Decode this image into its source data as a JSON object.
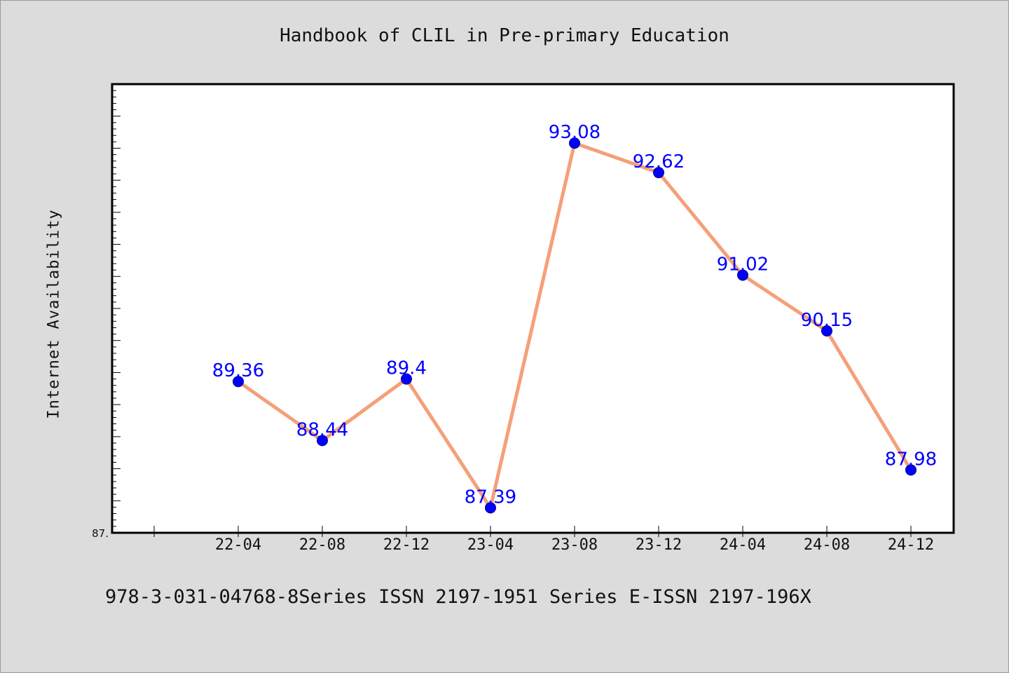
{
  "chart_data": {
    "type": "line",
    "title": "Handbook of CLIL in Pre-primary Education",
    "ylabel": "Internet Availability",
    "xlabel": "",
    "categories": [
      "22-04",
      "22-08",
      "22-12",
      "23-04",
      "23-08",
      "23-12",
      "24-04",
      "24-08",
      "24-12"
    ],
    "series": [
      {
        "values": [
          89.36,
          88.44,
          89.4,
          87.39,
          93.08,
          92.62,
          91.02,
          90.15,
          87.98
        ],
        "labels": [
          "89.36",
          "88.44",
          "89.4",
          "87.39",
          "93.08",
          "92.62",
          "91.02",
          "90.15",
          "87.98"
        ]
      }
    ],
    "ylim": [
      87.0,
      94.0
    ],
    "y_min_label": "87.",
    "grid": false,
    "colors": {
      "line": "#f4a07a",
      "marker": "#0000ff",
      "label": "#0000ff",
      "background": "#dcdcdc",
      "plot_background": "#ffffff"
    }
  },
  "footer": {
    "text": "978-3-031-04768-8Series ISSN 2197-1951 Series E-ISSN 2197-196X"
  }
}
